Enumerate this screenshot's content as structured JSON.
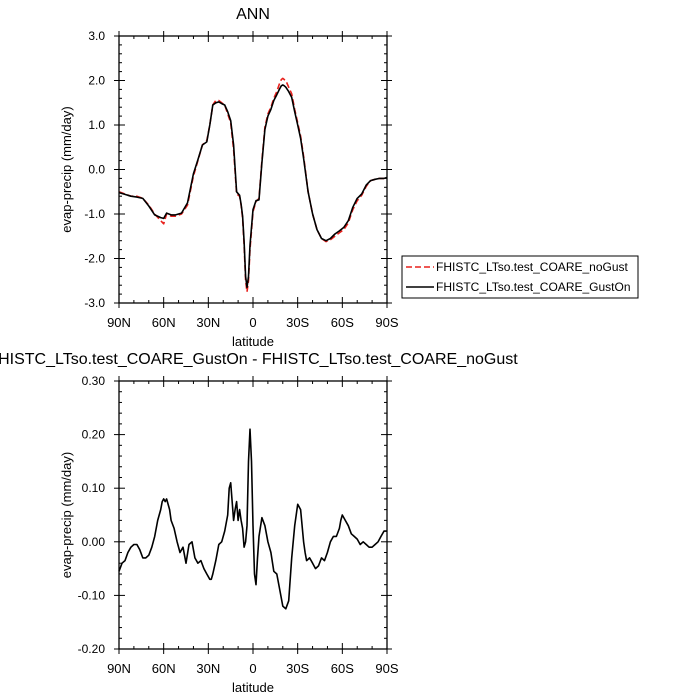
{
  "chart_data": [
    {
      "type": "line",
      "title": "ANN",
      "xlabel": "latitude",
      "ylabel": "evap-precip (mm/day)",
      "xlim": [
        90,
        -90
      ],
      "ylim": [
        -3.0,
        3.0
      ],
      "x_ticks": [
        90,
        60,
        30,
        0,
        -30,
        -60,
        -90
      ],
      "x_tick_labels": [
        "90N",
        "60N",
        "30N",
        "0",
        "30S",
        "60S",
        "90S"
      ],
      "y_ticks": [
        3.0,
        2.0,
        1.0,
        0.0,
        -1.0,
        -2.0,
        -3.0
      ],
      "y_tick_labels": [
        "3.0",
        "2.0",
        "1.0",
        "0.0",
        "-1.0",
        "-2.0",
        "-3.0"
      ],
      "legend_position": "right",
      "series": [
        {
          "name": "FHISTC_LTso.test_COARE_noGust",
          "color": "#e8201c",
          "dash": "dashed",
          "x": [
            90,
            86,
            82,
            78,
            74,
            70,
            66,
            62,
            60,
            58,
            55,
            52,
            48,
            44,
            40,
            37,
            34,
            31,
            29,
            27,
            25,
            23,
            21,
            19,
            17,
            15,
            13,
            11,
            9,
            8,
            7,
            6,
            5,
            4,
            3,
            2,
            0,
            -2,
            -4,
            -6,
            -8,
            -10,
            -12,
            -14,
            -16,
            -18,
            -19,
            -20,
            -21,
            -22,
            -24,
            -26,
            -28,
            -30,
            -32,
            -34,
            -37,
            -40,
            -43,
            -46,
            -49,
            -52,
            -55,
            -58,
            -61,
            -64,
            -67,
            -70,
            -73,
            -76,
            -79,
            -82,
            -85,
            -88,
            -90
          ],
          "values": [
            -0.5,
            -0.55,
            -0.6,
            -0.6,
            -0.65,
            -0.8,
            -1.0,
            -1.15,
            -1.22,
            -1.0,
            -1.05,
            -1.05,
            -1.0,
            -0.8,
            -0.15,
            0.2,
            0.55,
            0.65,
            1.0,
            1.45,
            1.55,
            1.55,
            1.5,
            1.45,
            1.25,
            1.05,
            0.45,
            -0.55,
            -0.6,
            -0.8,
            -1.1,
            -1.7,
            -2.5,
            -2.75,
            -2.5,
            -1.8,
            -0.95,
            -0.72,
            -0.65,
            0.2,
            0.95,
            1.25,
            1.4,
            1.6,
            1.75,
            1.95,
            2.02,
            2.05,
            2.02,
            2.0,
            1.85,
            1.7,
            1.35,
            1.05,
            0.75,
            0.3,
            -0.5,
            -1.0,
            -1.35,
            -1.55,
            -1.62,
            -1.58,
            -1.5,
            -1.42,
            -1.35,
            -1.2,
            -0.9,
            -0.7,
            -0.58,
            -0.38,
            -0.25,
            -0.22,
            -0.2,
            -0.2,
            -0.18
          ]
        },
        {
          "name": "FHISTC_LTso.test_COARE_GustOn",
          "color": "#000000",
          "dash": "solid",
          "x": [
            90,
            86,
            82,
            78,
            74,
            70,
            66,
            62,
            60,
            58,
            55,
            52,
            48,
            44,
            40,
            37,
            34,
            31,
            29,
            27,
            25,
            23,
            21,
            19,
            17,
            15,
            13,
            11,
            9,
            8,
            7,
            6,
            5,
            4,
            3,
            2,
            0,
            -2,
            -4,
            -6,
            -8,
            -10,
            -12,
            -14,
            -16,
            -18,
            -19,
            -20,
            -21,
            -22,
            -24,
            -26,
            -28,
            -30,
            -32,
            -34,
            -37,
            -40,
            -43,
            -46,
            -49,
            -52,
            -55,
            -58,
            -61,
            -64,
            -67,
            -70,
            -73,
            -76,
            -79,
            -82,
            -85,
            -88,
            -90
          ],
          "values": [
            -0.52,
            -0.56,
            -0.6,
            -0.62,
            -0.65,
            -0.82,
            -1.02,
            -1.08,
            -1.1,
            -0.98,
            -1.02,
            -1.02,
            -0.98,
            -0.75,
            -0.1,
            0.22,
            0.55,
            0.62,
            1.0,
            1.45,
            1.5,
            1.52,
            1.48,
            1.45,
            1.3,
            1.1,
            0.55,
            -0.5,
            -0.58,
            -0.78,
            -1.05,
            -1.62,
            -2.4,
            -2.65,
            -2.4,
            -1.7,
            -0.9,
            -0.7,
            -0.68,
            0.15,
            0.9,
            1.2,
            1.35,
            1.55,
            1.68,
            1.82,
            1.88,
            1.9,
            1.88,
            1.85,
            1.75,
            1.62,
            1.3,
            1.0,
            0.7,
            0.25,
            -0.5,
            -1.0,
            -1.35,
            -1.55,
            -1.6,
            -1.55,
            -1.45,
            -1.38,
            -1.3,
            -1.15,
            -0.85,
            -0.65,
            -0.55,
            -0.35,
            -0.25,
            -0.22,
            -0.2,
            -0.2,
            -0.18
          ]
        }
      ]
    },
    {
      "type": "line",
      "title": "FHISTC_LTso.test_COARE_GustOn - FHISTC_LTso.test_COARE_noGust",
      "xlabel": "latitude",
      "ylabel": "evap-precip (mm/day)",
      "xlim": [
        90,
        -90
      ],
      "ylim": [
        -0.2,
        0.3
      ],
      "x_ticks": [
        90,
        60,
        30,
        0,
        -30,
        -60,
        -90
      ],
      "x_tick_labels": [
        "90N",
        "60N",
        "30N",
        "0",
        "30S",
        "60S",
        "90S"
      ],
      "y_ticks": [
        0.3,
        0.2,
        0.1,
        0.0,
        -0.1,
        -0.2
      ],
      "y_tick_labels": [
        "0.30",
        "0.20",
        "0.10",
        "0.00",
        "-0.10",
        "-0.20"
      ],
      "series": [
        {
          "color": "#000000",
          "dash": "solid",
          "x": [
            90,
            88,
            86,
            84,
            82,
            80,
            78,
            76,
            74,
            72,
            70,
            68,
            66,
            64,
            62,
            61,
            60,
            59,
            58,
            56,
            55,
            53,
            51,
            49,
            47,
            45,
            43,
            41,
            39,
            37,
            35,
            33,
            31,
            29,
            28,
            27,
            25,
            23,
            21,
            19,
            17,
            16,
            15,
            13,
            12,
            11,
            10,
            9,
            8,
            7,
            6,
            5,
            4,
            3,
            2,
            1,
            0,
            -1,
            -2,
            -3,
            -4,
            -6,
            -8,
            -10,
            -12,
            -14,
            -16,
            -18,
            -20,
            -22,
            -24,
            -25,
            -26,
            -27,
            -28,
            -30,
            -32,
            -33,
            -34,
            -35,
            -36,
            -38,
            -40,
            -42,
            -44,
            -46,
            -48,
            -50,
            -52,
            -54,
            -56,
            -58,
            -59,
            -60,
            -62,
            -64,
            -66,
            -68,
            -70,
            -72,
            -74,
            -76,
            -78,
            -80,
            -82,
            -84,
            -86,
            -88,
            -90
          ],
          "values": [
            -0.055,
            -0.04,
            -0.035,
            -0.02,
            -0.01,
            -0.005,
            -0.005,
            -0.015,
            -0.03,
            -0.03,
            -0.025,
            -0.01,
            0.01,
            0.04,
            0.06,
            0.075,
            0.08,
            0.075,
            0.08,
            0.06,
            0.04,
            0.025,
            0.0,
            -0.02,
            -0.01,
            -0.04,
            -0.005,
            0.0,
            -0.03,
            -0.04,
            -0.035,
            -0.05,
            -0.06,
            -0.07,
            -0.07,
            -0.06,
            -0.035,
            -0.005,
            0.0,
            0.02,
            0.05,
            0.1,
            0.11,
            0.04,
            0.06,
            0.075,
            0.04,
            0.06,
            0.04,
            0.025,
            -0.01,
            0.0,
            0.03,
            0.15,
            0.21,
            0.15,
            0.03,
            -0.06,
            -0.08,
            -0.03,
            0.01,
            0.045,
            0.03,
            0.0,
            -0.02,
            -0.055,
            -0.06,
            -0.09,
            -0.12,
            -0.125,
            -0.11,
            -0.07,
            -0.03,
            0.0,
            0.03,
            0.07,
            0.06,
            0.03,
            0.0,
            -0.02,
            -0.035,
            -0.03,
            -0.04,
            -0.05,
            -0.045,
            -0.03,
            -0.035,
            -0.02,
            0.0,
            0.01,
            0.01,
            0.025,
            0.04,
            0.05,
            0.04,
            0.03,
            0.015,
            0.01,
            0.005,
            -0.005,
            0.0,
            -0.005,
            -0.01,
            -0.01,
            -0.005,
            0.0,
            0.01,
            0.02,
            0.02
          ]
        }
      ]
    }
  ]
}
